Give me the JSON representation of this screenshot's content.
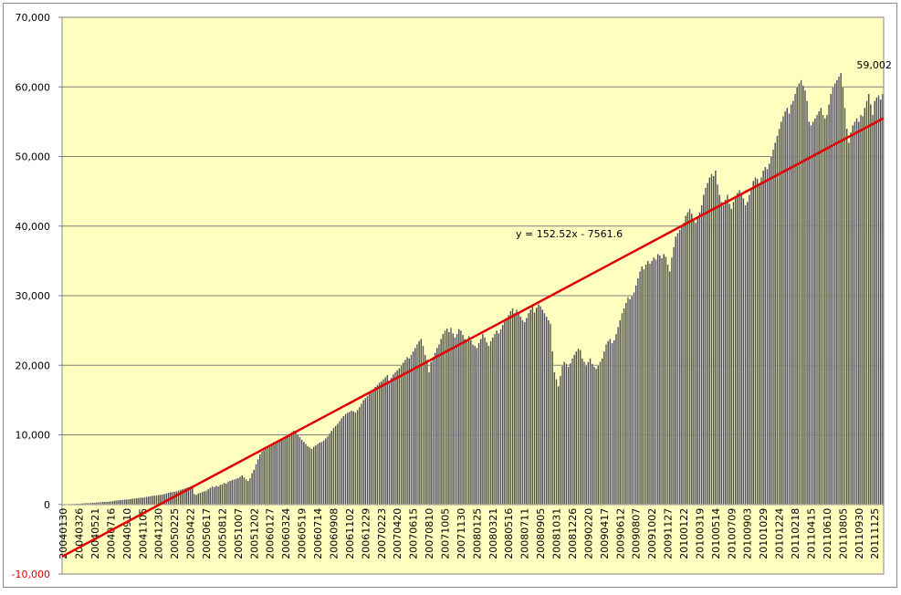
{
  "chart_data": {
    "type": "bar",
    "categories": [
      "20040130",
      null,
      null,
      null,
      null,
      null,
      null,
      null,
      "20040326",
      null,
      null,
      null,
      null,
      null,
      null,
      null,
      "20040521",
      null,
      null,
      null,
      null,
      null,
      null,
      null,
      "20040716",
      null,
      null,
      null,
      null,
      null,
      null,
      null,
      "20040910",
      null,
      null,
      null,
      null,
      null,
      null,
      null,
      "20041105",
      null,
      null,
      null,
      null,
      null,
      null,
      null,
      "20041230",
      null,
      null,
      null,
      null,
      null,
      null,
      null,
      "20050225",
      null,
      null,
      null,
      null,
      null,
      null,
      null,
      "20050422",
      null,
      null,
      null,
      null,
      null,
      null,
      null,
      "20050617",
      null,
      null,
      null,
      null,
      null,
      null,
      null,
      "20050812",
      null,
      null,
      null,
      null,
      null,
      null,
      null,
      "20051007",
      null,
      null,
      null,
      null,
      null,
      null,
      null,
      "20051202",
      null,
      null,
      null,
      null,
      null,
      null,
      null,
      "20060127",
      null,
      null,
      null,
      null,
      null,
      null,
      null,
      "20060324",
      null,
      null,
      null,
      null,
      null,
      null,
      null,
      "20060519",
      null,
      null,
      null,
      null,
      null,
      null,
      null,
      "20060714",
      null,
      null,
      null,
      null,
      null,
      null,
      null,
      "20060908",
      null,
      null,
      null,
      null,
      null,
      null,
      null,
      "20061102",
      null,
      null,
      null,
      null,
      null,
      null,
      null,
      "20061229",
      null,
      null,
      null,
      null,
      null,
      null,
      null,
      "20070223",
      null,
      null,
      null,
      null,
      null,
      null,
      null,
      "20070420",
      null,
      null,
      null,
      null,
      null,
      null,
      null,
      "20070615",
      null,
      null,
      null,
      null,
      null,
      null,
      null,
      "20070810",
      null,
      null,
      null,
      null,
      null,
      null,
      null,
      "20071005",
      null,
      null,
      null,
      null,
      null,
      null,
      null,
      "20071130",
      null,
      null,
      null,
      null,
      null,
      null,
      null,
      "20080125",
      null,
      null,
      null,
      null,
      null,
      null,
      null,
      "20080321",
      null,
      null,
      null,
      null,
      null,
      null,
      null,
      "20080516",
      null,
      null,
      null,
      null,
      null,
      null,
      null,
      "20080711",
      null,
      null,
      null,
      null,
      null,
      null,
      null,
      "20080905",
      null,
      null,
      null,
      null,
      null,
      null,
      null,
      "20081031",
      null,
      null,
      null,
      null,
      null,
      null,
      null,
      "20081226",
      null,
      null,
      null,
      null,
      null,
      null,
      null,
      "20090220",
      null,
      null,
      null,
      null,
      null,
      null,
      null,
      "20090417",
      null,
      null,
      null,
      null,
      null,
      null,
      null,
      "20090612",
      null,
      null,
      null,
      null,
      null,
      null,
      null,
      "20090807",
      null,
      null,
      null,
      null,
      null,
      null,
      null,
      "20091002",
      null,
      null,
      null,
      null,
      null,
      null,
      null,
      "20091127",
      null,
      null,
      null,
      null,
      null,
      null,
      null,
      "20100122",
      null,
      null,
      null,
      null,
      null,
      null,
      null,
      "20100319",
      null,
      null,
      null,
      null,
      null,
      null,
      null,
      "20100514",
      null,
      null,
      null,
      null,
      null,
      null,
      null,
      "20100709",
      null,
      null,
      null,
      null,
      null,
      null,
      null,
      "20100903",
      null,
      null,
      null,
      null,
      null,
      null,
      null,
      "20101029",
      null,
      null,
      null,
      null,
      null,
      null,
      null,
      "20101224",
      null,
      null,
      null,
      null,
      null,
      null,
      null,
      "20110218",
      null,
      null,
      null,
      null,
      null,
      null,
      null,
      "20110415",
      null,
      null,
      null,
      null,
      null,
      null,
      null,
      "20110610",
      null,
      null,
      null,
      null,
      null,
      null,
      null,
      "20110805",
      null,
      null,
      null,
      null,
      null,
      null,
      null,
      "20110930",
      null,
      null,
      null,
      null,
      null,
      null,
      null,
      "20111125",
      null,
      null,
      null,
      null
    ],
    "values": [
      50,
      60,
      70,
      80,
      90,
      100,
      110,
      120,
      130,
      150,
      170,
      180,
      200,
      210,
      230,
      250,
      270,
      290,
      320,
      350,
      380,
      400,
      380,
      420,
      450,
      500,
      550,
      600,
      620,
      650,
      680,
      700,
      720,
      760,
      800,
      850,
      880,
      900,
      950,
      980,
      1000,
      1050,
      1100,
      1150,
      1200,
      1250,
      1280,
      1300,
      1350,
      1400,
      1450,
      1500,
      1600,
      1700,
      1750,
      1800,
      1850,
      1900,
      2000,
      2100,
      2200,
      2300,
      2400,
      2500,
      2600,
      2700,
      1500,
      1400,
      1600,
      1700,
      1800,
      1900,
      2000,
      2200,
      2400,
      2600,
      2500,
      2700,
      2600,
      2800,
      2900,
      3100,
      3000,
      3300,
      3400,
      3500,
      3600,
      3700,
      3800,
      4000,
      4200,
      3900,
      3600,
      3400,
      3800,
      4500,
      5000,
      5800,
      6500,
      7200,
      7600,
      7800,
      8000,
      8200,
      8300,
      8500,
      8600,
      8800,
      9000,
      9200,
      9400,
      9600,
      9800,
      10000,
      10200,
      10400,
      10600,
      10500,
      10100,
      9700,
      9300,
      9000,
      8700,
      8400,
      8200,
      8000,
      8300,
      8500,
      8700,
      8900,
      9000,
      9200,
      9500,
      9800,
      10200,
      10600,
      11000,
      11300,
      11600,
      12000,
      12400,
      12700,
      13000,
      13200,
      13300,
      13500,
      13400,
      13200,
      13600,
      14000,
      14500,
      15000,
      15300,
      15600,
      16000,
      16300,
      16600,
      16900,
      17200,
      17500,
      17700,
      18000,
      18300,
      18600,
      17800,
      18200,
      18700,
      19000,
      19300,
      19600,
      20000,
      20400,
      20800,
      21200,
      21000,
      21500,
      22000,
      22500,
      23000,
      23500,
      23800,
      22800,
      21500,
      20800,
      19000,
      20500,
      21200,
      21800,
      22500,
      23000,
      23800,
      24500,
      25000,
      25300,
      24800,
      25400,
      24600,
      24000,
      24500,
      25200,
      25000,
      24400,
      23800,
      23500,
      24200,
      23600,
      23000,
      22800,
      22500,
      23200,
      23800,
      24500,
      24000,
      23300,
      22800,
      23500,
      24000,
      24500,
      25000,
      24600,
      25200,
      25800,
      26300,
      26800,
      27200,
      27800,
      28200,
      27500,
      28000,
      27400,
      27000,
      26500,
      26200,
      26800,
      27500,
      28000,
      28500,
      27600,
      28300,
      28800,
      28500,
      28000,
      27500,
      27000,
      26500,
      26000,
      22000,
      19000,
      18000,
      17000,
      18500,
      20000,
      20500,
      20200,
      19800,
      20300,
      21000,
      21500,
      22000,
      22400,
      22200,
      21000,
      20500,
      20000,
      20500,
      21000,
      20200,
      19800,
      19500,
      20000,
      20500,
      21000,
      22000,
      23000,
      23500,
      23800,
      23200,
      23600,
      24500,
      25500,
      26500,
      27500,
      28200,
      29000,
      29800,
      29500,
      30000,
      30500,
      31500,
      32500,
      33500,
      34200,
      33800,
      34500,
      35000,
      34600,
      35000,
      35500,
      35200,
      36000,
      35800,
      35400,
      36000,
      35600,
      34500,
      33500,
      35500,
      37000,
      38500,
      39000,
      39500,
      40000,
      40500,
      41500,
      42000,
      42500,
      41800,
      41000,
      40500,
      41200,
      42000,
      43000,
      44500,
      45500,
      46200,
      47000,
      47500,
      47200,
      48000,
      46000,
      44500,
      43500,
      43000,
      43800,
      44500,
      43200,
      42500,
      43500,
      44200,
      44800,
      45200,
      44500,
      44000,
      43000,
      43500,
      44500,
      45500,
      46500,
      47000,
      46800,
      46200,
      47000,
      48000,
      48500,
      48200,
      49000,
      50000,
      51000,
      52000,
      53000,
      54000,
      55000,
      55800,
      56500,
      57000,
      56200,
      57500,
      58000,
      59000,
      60000,
      60500,
      61000,
      60200,
      59500,
      58000,
      55000,
      54500,
      55000,
      55500,
      56000,
      56500,
      57000,
      56000,
      55500,
      56000,
      57500,
      59000,
      60000,
      60500,
      61000,
      61500,
      62000,
      60000,
      57000,
      54000,
      52000,
      53500,
      54500,
      55000,
      55500,
      55000,
      56000,
      55800,
      57000,
      58000,
      59000,
      57500,
      56000,
      58000,
      58500,
      58800,
      58200,
      59002
    ],
    "value_labels": [
      null,
      null,
      null,
      null,
      null,
      null,
      null,
      null,
      null,
      null,
      null,
      null,
      null,
      null,
      null,
      null,
      null,
      null,
      null,
      null,
      null,
      null,
      null,
      null,
      null,
      null,
      null,
      null,
      null,
      null,
      null,
      null,
      null,
      null,
      null,
      null,
      null,
      null,
      null,
      null,
      null,
      null,
      null,
      null,
      null,
      null,
      null,
      null,
      null,
      null,
      null,
      null,
      null,
      null,
      null,
      null,
      null,
      null,
      null,
      null,
      null,
      null,
      null,
      null,
      null,
      null,
      null,
      null,
      null,
      null,
      null,
      null,
      null,
      null,
      null,
      null,
      null,
      null,
      null,
      null,
      null,
      null,
      null,
      null,
      null,
      null,
      null,
      null,
      null,
      null,
      null,
      null,
      null,
      null,
      null,
      null,
      null,
      null,
      null,
      null,
      null,
      null,
      null,
      null,
      null,
      null,
      null,
      null,
      null,
      null,
      null,
      null,
      null,
      null,
      null,
      null,
      null,
      null,
      null,
      null,
      null,
      null,
      null,
      null,
      null,
      null,
      null,
      null,
      null,
      null,
      null,
      null,
      null,
      null,
      null,
      null,
      null,
      null,
      null,
      null,
      null,
      null,
      null,
      null,
      null,
      null,
      null,
      null,
      null,
      null,
      null,
      null,
      null,
      null,
      null,
      null,
      null,
      null,
      null,
      null,
      null,
      null,
      null,
      null,
      null,
      null,
      null,
      null,
      null,
      null,
      null,
      null,
      null,
      null,
      null,
      null,
      null,
      null,
      null,
      null,
      null,
      null,
      null,
      null,
      null,
      null,
      null,
      null,
      null,
      null,
      null,
      null,
      null,
      null,
      null,
      null,
      null,
      null,
      null,
      null,
      null,
      null,
      null,
      null,
      null,
      null,
      null,
      null,
      null,
      null,
      null,
      null,
      null,
      null,
      null,
      null,
      null,
      null,
      null,
      null,
      null,
      null,
      null,
      null,
      null,
      null,
      null,
      null,
      null,
      null,
      null,
      null,
      null,
      null,
      null,
      null,
      null,
      null,
      null,
      null,
      null,
      null,
      null,
      null,
      null,
      null,
      null,
      null,
      null,
      null,
      null,
      null,
      null,
      null,
      null,
      null,
      null,
      null,
      null,
      null,
      null,
      null,
      null,
      null,
      null,
      null,
      null,
      null,
      null,
      null,
      null,
      null,
      null,
      null,
      null,
      null,
      null,
      null,
      null,
      null,
      null,
      null,
      null,
      null,
      null,
      null,
      null,
      null,
      null,
      null,
      null,
      null,
      null,
      null,
      null,
      null,
      null,
      null,
      null,
      null,
      null,
      null,
      null,
      null,
      null,
      null,
      null,
      null,
      null,
      null,
      null,
      null,
      null,
      null,
      null,
      null,
      null,
      null,
      null,
      null,
      null,
      null,
      null,
      null,
      null,
      null,
      null,
      null,
      null,
      null,
      null,
      null,
      null,
      null,
      null,
      null,
      null,
      null,
      null,
      null,
      null,
      null,
      null,
      null,
      null,
      null,
      null,
      null,
      null,
      null,
      null,
      null,
      null,
      null,
      null,
      null,
      null,
      null,
      null,
      null,
      null,
      null,
      null,
      null,
      null,
      null,
      null,
      null,
      null,
      null,
      null,
      null,
      null,
      null,
      null,
      null,
      null,
      null,
      null,
      null,
      null,
      null,
      null,
      null,
      null,
      null,
      null,
      null,
      null,
      null,
      null,
      null,
      null,
      null,
      null,
      null,
      null,
      null,
      null,
      null,
      null,
      null,
      null,
      null,
      null,
      null,
      null,
      null,
      null,
      null,
      null,
      null,
      "59,002"
    ],
    "color": "#505050",
    "ylim": [
      -10000,
      70000
    ],
    "yticks": [
      {
        "value": -10000,
        "label": "-10,000"
      },
      0,
      {
        "value": 10000,
        "label": "10,000"
      },
      {
        "value": 20000,
        "label": "20,000"
      },
      {
        "value": 30000,
        "label": "30,000"
      },
      {
        "value": 40000,
        "label": "40,000"
      },
      {
        "value": 50000,
        "label": "50,000"
      },
      {
        "value": 60000,
        "label": "60,000"
      },
      {
        "value": 70000,
        "label": "70,000"
      }
    ],
    "grid": true,
    "trendline": {
      "slope": 152.52,
      "intercept": -7561.6,
      "label": "y = 152.52x - 7561.6",
      "color": "#e00000"
    }
  }
}
